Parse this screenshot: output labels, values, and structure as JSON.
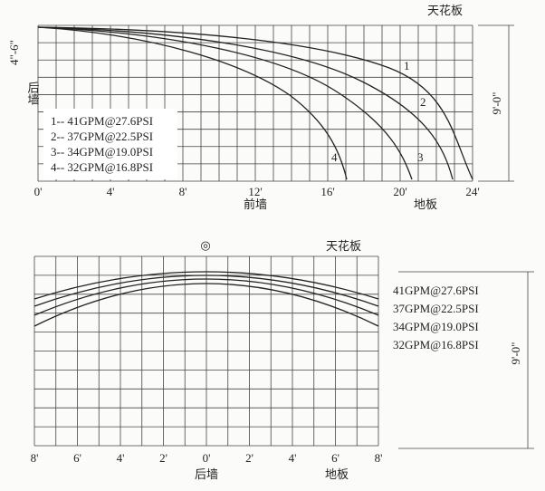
{
  "top": {
    "ceiling": "天花板",
    "height": "4\"-6\"",
    "rear_wall": "后墙",
    "legend": [
      "1-- 41GPM@27.6PSI",
      "2-- 37GPM@22.5PSI",
      "3-- 34GPM@19.0PSI",
      "4-- 32GPM@16.8PSI"
    ],
    "curve_labels": [
      "1",
      "2",
      "3",
      "4"
    ],
    "dimension": "9'-0\"",
    "x_labels": [
      "0'",
      "4'",
      "8'",
      "12'",
      "16'",
      "20'",
      "24'"
    ],
    "front_wall": "前墙",
    "floor": "地板"
  },
  "bottom": {
    "symbol": "◎",
    "ceiling": "天花板",
    "legend": [
      "41GPM@27.6PSI",
      "37GPM@22.5PSI",
      "34GPM@19.0PSI",
      "32GPM@16.8PSI"
    ],
    "dimension": "9'-0\"",
    "x_labels": [
      "8'",
      "6'",
      "4'",
      "2'",
      "0'",
      "2'",
      "4'",
      "6'",
      "8'"
    ],
    "rear_wall": "后墙",
    "floor": "地板"
  }
}
